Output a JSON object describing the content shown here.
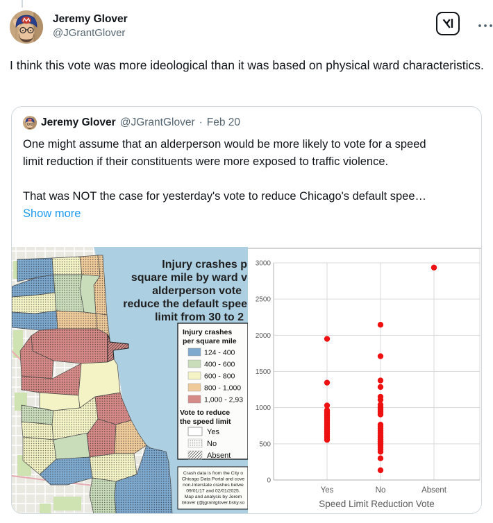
{
  "colors": {
    "link_blue": "#1d9bf0",
    "text_primary": "#0f1419",
    "text_secondary": "#536471",
    "card_border": "#cfd9de",
    "lake_blue": "#accfe2",
    "marker_red": "#ed1111"
  },
  "main_tweet": {
    "name": "Jeremy Glover",
    "handle": "@JGrantGlover",
    "text": "I think this vote was more ideological than it was based on physical ward characteristics."
  },
  "quote_tweet": {
    "name": "Jeremy Glover",
    "handle": "@JGrantGlover",
    "separator": "·",
    "date": "Feb 20",
    "paragraph1": "One might assume that an alderperson would be more likely to vote for a speed limit reduction if their constituents were more exposed to traffic violence.",
    "paragraph2": "That was NOT the case for yesterday's vote to reduce Chicago's default spee…",
    "show_more_label": "Show more"
  },
  "map": {
    "title_lines": [
      "Injury crashes p",
      "square mile by ward v",
      "alderperson vote",
      "reduce the default spee",
      "limit from 30 to 2"
    ],
    "legend_title_line1": "Injury crashes",
    "legend_title_line2": "per square mile",
    "legend_classes": [
      {
        "label": "124 - 400",
        "color": "#7ea9cf"
      },
      {
        "label": "400 - 600",
        "color": "#c9ddbb"
      },
      {
        "label": "600 - 800",
        "color": "#f3f3c6"
      },
      {
        "label": "800 - 1,000",
        "color": "#efcb9b"
      },
      {
        "label": "1,000 - 2,93",
        "color": "#d68a87"
      }
    ],
    "vote_title_line1": "Vote to reduce",
    "vote_title_line2": "the speed limit",
    "vote_classes": [
      {
        "label": "Yes",
        "pattern": "plain"
      },
      {
        "label": "No",
        "pattern": "dots"
      },
      {
        "label": "Absent",
        "pattern": "hatch"
      }
    ],
    "attribution_lines": [
      "Crash data is from the City o",
      "Chicago Data Portal and cove",
      "non-Interstate crashes betwe",
      "09/01/17 and 02/01/2025.",
      "Map and analysis by Jerem",
      "Glover (@jgrantglover.bsky.so"
    ]
  },
  "chart_data": {
    "type": "scatter",
    "title": "",
    "xlabel": "Speed Limit Reduction Vote",
    "ylabel": "",
    "categories": [
      "Yes",
      "No",
      "Absent"
    ],
    "yticks": [
      0,
      500,
      1000,
      1500,
      2000,
      2500,
      3000
    ],
    "ylim": [
      0,
      3000
    ],
    "grid": true,
    "legend": "none",
    "marker_color": "#ed1111",
    "series": [
      {
        "name": "Yes",
        "values": [
          1950,
          1345,
          1030,
          965,
          945,
          925,
          905,
          885,
          865,
          845,
          820,
          795,
          770,
          745,
          720,
          695,
          670,
          645,
          615,
          585,
          555
        ]
      },
      {
        "name": "No",
        "values": [
          2145,
          1710,
          1375,
          1285,
          1150,
          1110,
          1040,
          1005,
          980,
          955,
          930,
          905,
          765,
          740,
          710,
          680,
          650,
          620,
          590,
          560,
          530,
          505,
          480,
          450,
          420,
          390,
          300,
          135
        ]
      },
      {
        "name": "Absent",
        "values": [
          2935
        ]
      }
    ]
  }
}
